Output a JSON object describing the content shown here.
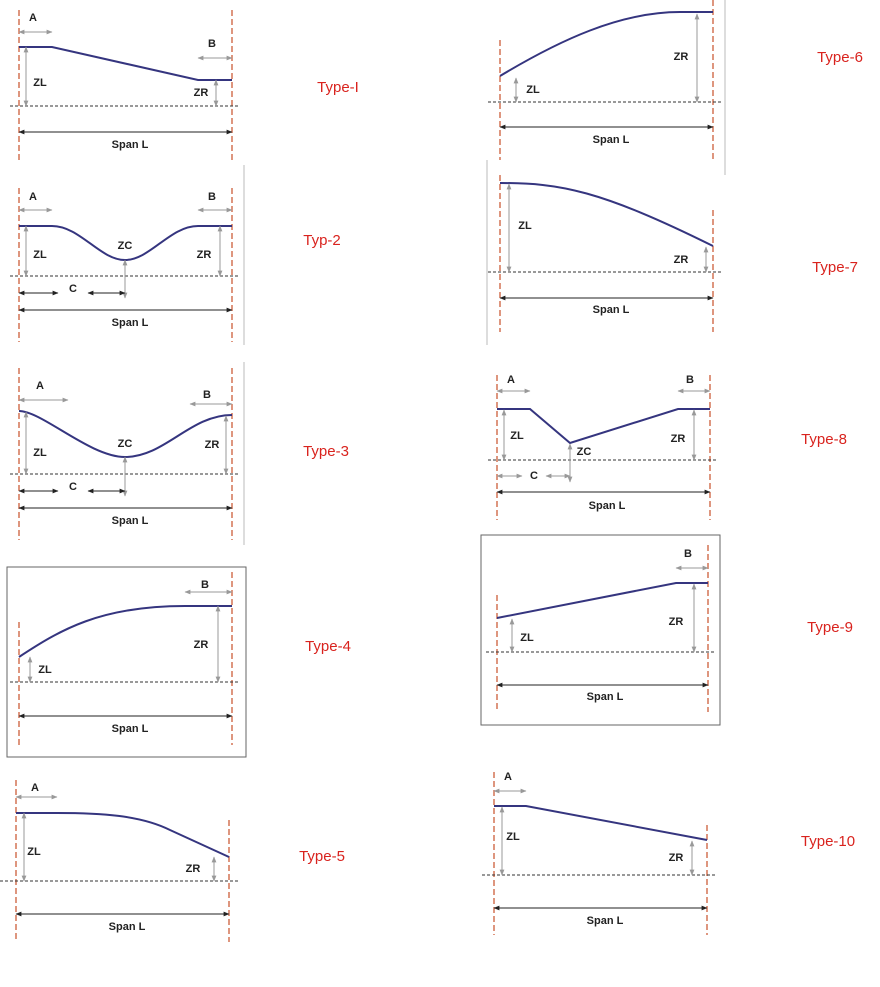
{
  "panels": [
    {
      "name": "Type-I",
      "a": "A",
      "b": "B",
      "zl": "ZL",
      "zr": "ZR",
      "span": "Span L"
    },
    {
      "name": "Typ-2",
      "a": "A",
      "b": "B",
      "zl": "ZL",
      "zc": "ZC",
      "zr": "ZR",
      "c": "C",
      "span": "Span L"
    },
    {
      "name": "Type-3",
      "a": "A",
      "b": "B",
      "zl": "ZL",
      "zc": "ZC",
      "zr": "ZR",
      "c": "C",
      "span": "Span L"
    },
    {
      "name": "Type-4",
      "b": "B",
      "zl": "ZL",
      "zr": "ZR",
      "span": "Span L"
    },
    {
      "name": "Type-5",
      "a": "A",
      "zl": "ZL",
      "zr": "ZR",
      "span": "Span L"
    },
    {
      "name": "Type-6",
      "zl": "ZL",
      "zr": "ZR",
      "span": "Span L"
    },
    {
      "name": "Type-7",
      "zl": "ZL",
      "zr": "ZR",
      "span": "Span L"
    },
    {
      "name": "Type-8",
      "a": "A",
      "b": "B",
      "zl": "ZL",
      "zc": "ZC",
      "zr": "ZR",
      "c": "C",
      "span": "Span L"
    },
    {
      "name": "Type-9",
      "b": "B",
      "zl": "ZL",
      "zr": "ZR",
      "span": "Span L"
    },
    {
      "name": "Type-10",
      "a": "A",
      "zl": "ZL",
      "zr": "ZR",
      "span": "Span L"
    }
  ]
}
